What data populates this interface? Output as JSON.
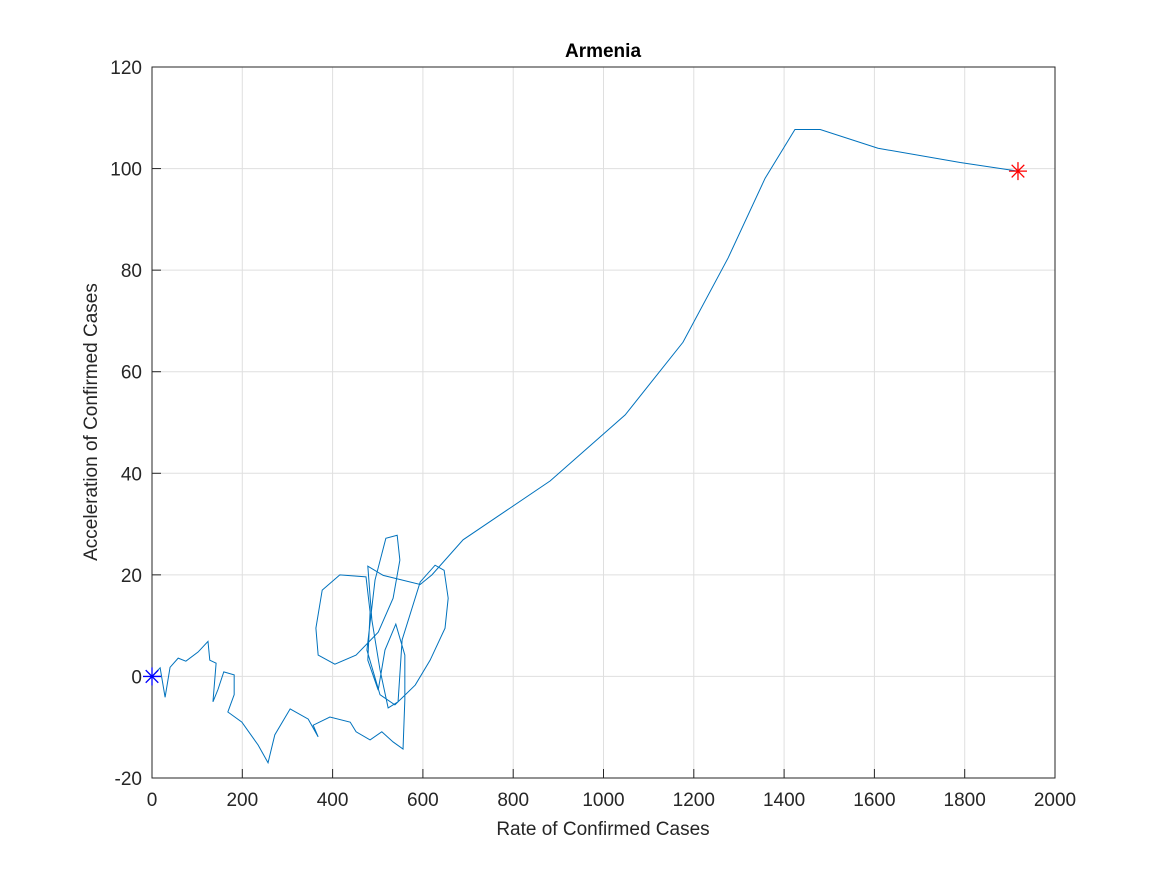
{
  "chart_data": {
    "type": "line",
    "title": "Armenia",
    "xlabel": "Rate of Confirmed Cases",
    "ylabel": "Acceleration of Confirmed Cases",
    "x": [
      0,
      18,
      29,
      40,
      58,
      75,
      102,
      124,
      128,
      142,
      135,
      146,
      159,
      182,
      182,
      168,
      199,
      235,
      257,
      272,
      306,
      346,
      368,
      357,
      394,
      439,
      452,
      483,
      509,
      534,
      556,
      560,
      560,
      540,
      516,
      501,
      478,
      483,
      474,
      416,
      377,
      363,
      368,
      405,
      452,
      501,
      534,
      549,
      543,
      518,
      494,
      476,
      505,
      538,
      583,
      616,
      649,
      656,
      647,
      627,
      594,
      554,
      545,
      523,
      505,
      487,
      478,
      512,
      594,
      620,
      689,
      882,
      1048,
      1176,
      1276,
      1358,
      1424,
      1480,
      1608,
      1790,
      1918
    ],
    "series": [
      {
        "color": "#0072bd",
        "values": [
          0,
          1.7,
          -4.1,
          1.8,
          3.6,
          3.0,
          4.8,
          6.9,
          3.2,
          2.6,
          -5.0,
          -2.6,
          0.9,
          0.3,
          -3.6,
          -7.0,
          -9.0,
          -13.5,
          -17.0,
          -11.5,
          -6.4,
          -8.4,
          -11.9,
          -9.6,
          -8.0,
          -9.0,
          -10.9,
          -12.5,
          -10.9,
          -12.9,
          -14.3,
          -4.6,
          4.2,
          10.3,
          5.2,
          -2.7,
          3.2,
          12.7,
          19.6,
          20.0,
          17.0,
          9.5,
          4.2,
          2.4,
          4.2,
          8.7,
          15.4,
          22.9,
          27.8,
          27.2,
          19.0,
          5.2,
          -3.6,
          -5.6,
          -1.7,
          3.2,
          9.5,
          15.4,
          20.9,
          21.9,
          18.6,
          7.2,
          -5.0,
          -6.2,
          1.3,
          11.1,
          21.7,
          19.9,
          18.1,
          20.0,
          26.9,
          38.5,
          51.5,
          65.8,
          82.4,
          98.1,
          107.7,
          107.7,
          104.0,
          101.2,
          99.5
        ]
      }
    ],
    "start_marker_color": "#0000ff",
    "end_marker_color": "#ff0000",
    "xlim": [
      0,
      2000
    ],
    "xticks": [
      0,
      200,
      400,
      600,
      800,
      1000,
      1200,
      1400,
      1600,
      1800,
      2000
    ],
    "ylim": [
      -20,
      120
    ],
    "yticks": [
      -20,
      0,
      20,
      40,
      60,
      80,
      100,
      120
    ],
    "grid": true
  }
}
